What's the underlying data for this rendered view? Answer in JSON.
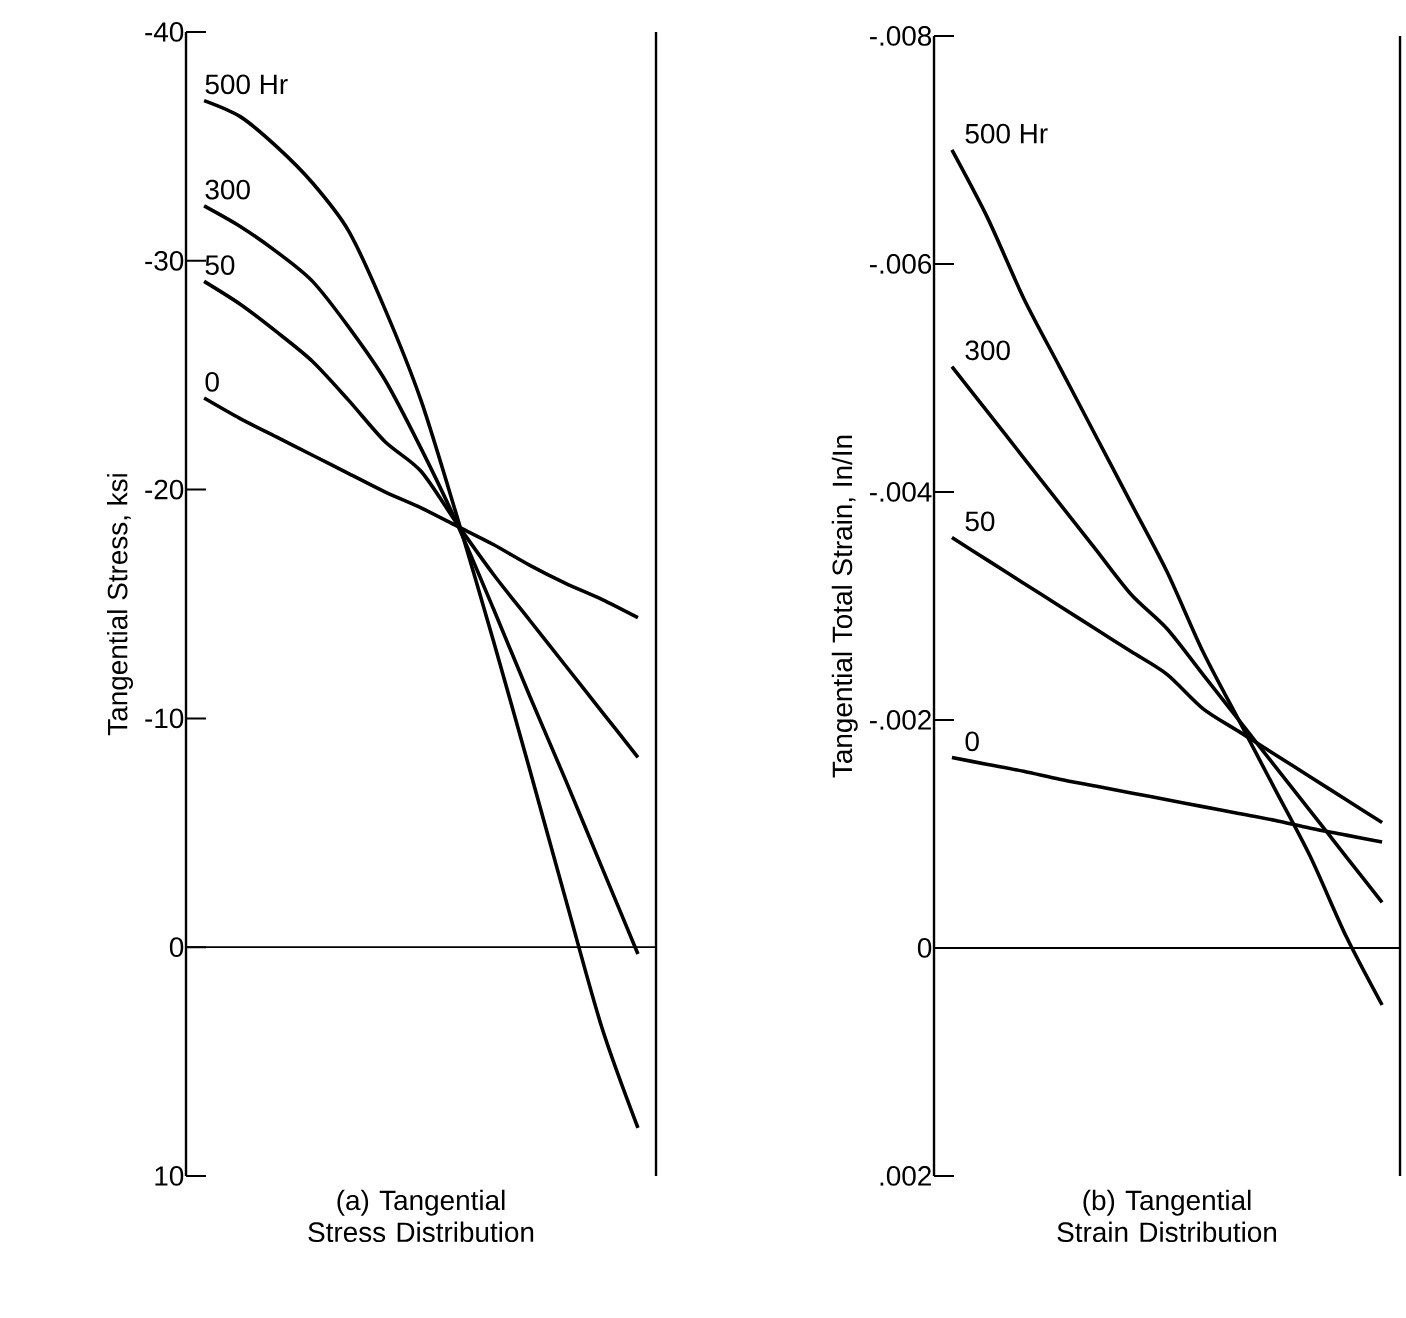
{
  "chart_data": [
    {
      "type": "line",
      "title": "(a) Tangential Stress Distribution",
      "ylabel": "Tangential Stress, ksi",
      "categories": [
        null,
        null,
        null,
        null,
        null,
        null,
        null,
        null,
        null,
        null,
        null,
        null,
        null
      ],
      "ylim": [
        10,
        -40
      ],
      "yticks": [
        -40,
        -30,
        -20,
        -10,
        0,
        10
      ],
      "tick_labels": "y",
      "ref_lines": [
        {
          "axis": "y",
          "value": 0,
          "color": "#000000"
        }
      ],
      "series": [
        {
          "name": "500 Hr",
          "color": "#000000",
          "values": [
            -37.0,
            -36.3,
            -35.0,
            -33.4,
            -31.3,
            -27.9,
            -23.9,
            -18.8,
            -13.4,
            -7.8,
            -2.1,
            3.5,
            7.9
          ]
        },
        {
          "name": "300",
          "color": "#000000",
          "values": [
            -32.4,
            -31.5,
            -30.4,
            -29.1,
            -27.1,
            -24.8,
            -21.8,
            -18.5,
            -14.8,
            -11.0,
            -7.3,
            -3.5,
            0.3
          ]
        },
        {
          "name": "50",
          "color": "#000000",
          "values": [
            -29.1,
            -28.1,
            -26.9,
            -25.6,
            -23.9,
            -22.1,
            -20.8,
            -18.5,
            -16.3,
            -14.3,
            -12.3,
            -10.3,
            -8.3
          ]
        },
        {
          "name": "0",
          "color": "#000000",
          "values": [
            -24.0,
            -23.1,
            -22.3,
            -21.5,
            -20.7,
            -19.9,
            -19.2,
            -18.4,
            -17.6,
            -16.7,
            -15.9,
            -15.2,
            -14.4
          ]
        }
      ]
    },
    {
      "type": "line",
      "title": "(b) Tangential Strain Distribution",
      "ylabel": "Tangential Total Strain, In/In",
      "categories": [
        null,
        null,
        null,
        null,
        null,
        null,
        null,
        null,
        null,
        null,
        null,
        null,
        null
      ],
      "ylim": [
        0.002,
        -0.008
      ],
      "yticks": [
        {
          "value": -0.008,
          "label": "-.008"
        },
        {
          "value": -0.006,
          "label": "-.006"
        },
        {
          "value": -0.004,
          "label": "-.004"
        },
        {
          "value": -0.002,
          "label": "-.002"
        },
        {
          "value": 0,
          "label": "0"
        },
        {
          "value": 0.002,
          "label": ".002"
        }
      ],
      "tick_labels": "y",
      "ref_lines": [
        {
          "axis": "y",
          "value": 0,
          "color": "#000000"
        }
      ],
      "series": [
        {
          "name": "500 Hr",
          "color": "#000000",
          "values": [
            -0.007,
            -0.0064,
            -0.0057,
            -0.0051,
            -0.0045,
            -0.0039,
            -0.0033,
            -0.0026,
            -0.002,
            -0.0014,
            -0.0008,
            -0.0001,
            0.0005
          ]
        },
        {
          "name": "300",
          "color": "#000000",
          "values": [
            -0.0051,
            -0.0047,
            -0.0043,
            -0.0039,
            -0.0035,
            -0.0031,
            -0.0028,
            -0.0024,
            -0.002,
            -0.0016,
            -0.0012,
            -0.0008,
            -0.0004
          ]
        },
        {
          "name": "50",
          "color": "#000000",
          "values": [
            -0.0036,
            -0.0034,
            -0.0032,
            -0.003,
            -0.0028,
            -0.0026,
            -0.0024,
            -0.0021,
            -0.0019,
            -0.0017,
            -0.0015,
            -0.0013,
            -0.0011
          ]
        },
        {
          "name": "0",
          "color": "#000000",
          "values": [
            -0.00167,
            -0.00161,
            -0.00155,
            -0.00148,
            -0.00142,
            -0.00136,
            -0.0013,
            -0.00124,
            -0.00118,
            -0.00112,
            -0.00105,
            -0.00099,
            -0.00093
          ]
        }
      ]
    }
  ]
}
